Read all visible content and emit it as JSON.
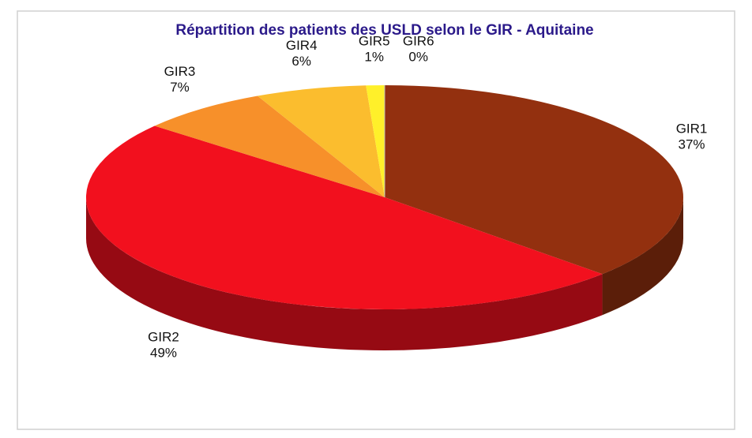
{
  "chart_data": {
    "type": "pie3d",
    "title": "Répartition des patients des USLD selon le GIR - Aquitaine",
    "categories": [
      "GIR1",
      "GIR2",
      "GIR3",
      "GIR4",
      "GIR5",
      "GIR6"
    ],
    "values": [
      37,
      49,
      7,
      6,
      1,
      0
    ],
    "value_labels": [
      "37%",
      "49%",
      "7%",
      "6%",
      "1%",
      "0%"
    ],
    "colors": [
      "#93300f",
      "#f2101e",
      "#f7902a",
      "#fbbd2e",
      "#fff02a",
      "#fffbd0"
    ]
  }
}
